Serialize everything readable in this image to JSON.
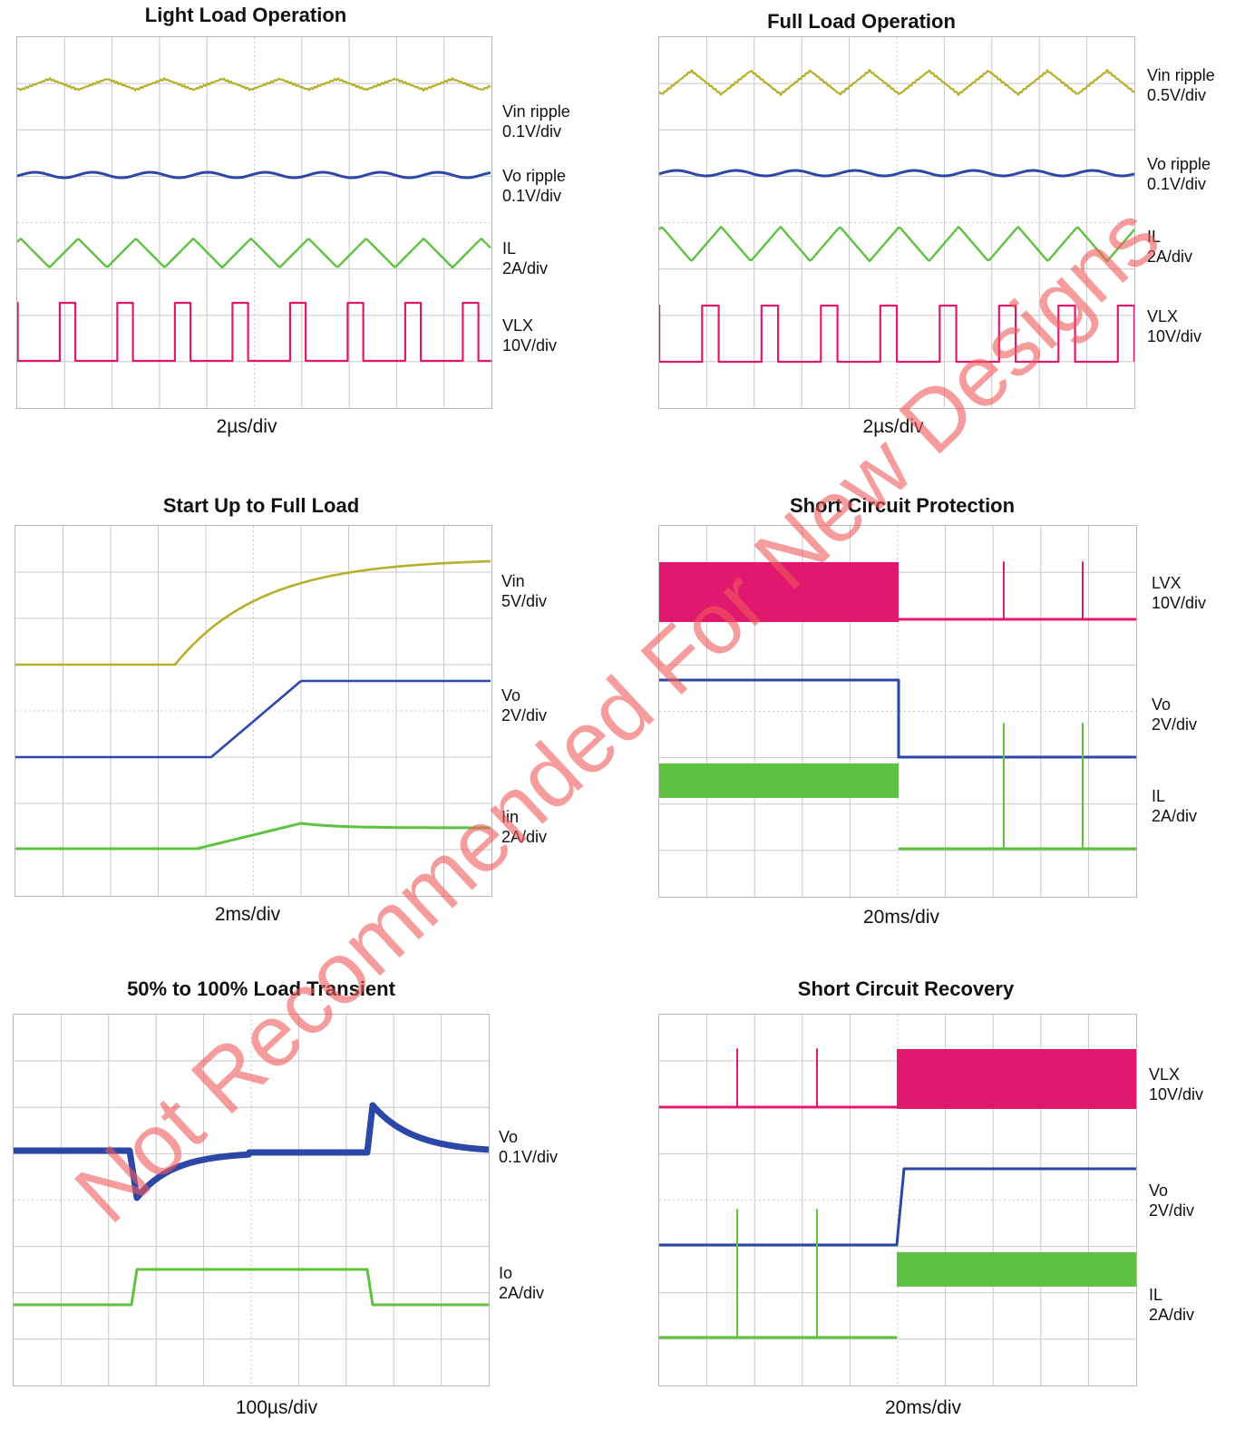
{
  "watermark": "Not Recommended For New Designs",
  "colors": {
    "vin": "#b5b02a",
    "vo": "#2b47a8",
    "il": "#5cc23f",
    "vlx": "#e0186e",
    "grid": "#c8c8c8"
  },
  "chart_data": [
    {
      "type": "line",
      "title": "Light Load Operation",
      "time_division": "2µs/div",
      "channels": [
        {
          "name": "Vin ripple",
          "scale": "0.1V/div",
          "waveform": "ripple"
        },
        {
          "name": "Vo ripple",
          "scale": "0.1V/div",
          "waveform": "ripple"
        },
        {
          "name": "IL",
          "scale": "2A/div",
          "waveform": "triangle"
        },
        {
          "name": "VLX",
          "scale": "10V/div",
          "waveform": "pulse"
        }
      ]
    },
    {
      "type": "line",
      "title": "Full Load Operation",
      "time_division": "2µs/div",
      "channels": [
        {
          "name": "Vin ripple",
          "scale": "0.5V/div",
          "waveform": "ripple"
        },
        {
          "name": "Vo ripple",
          "scale": "0.1V/div",
          "waveform": "ripple"
        },
        {
          "name": "IL",
          "scale": "2A/div",
          "waveform": "triangle"
        },
        {
          "name": "VLX",
          "scale": "10V/div",
          "waveform": "pulse"
        }
      ]
    },
    {
      "type": "line",
      "title": "Start Up to Full Load",
      "time_division": "2ms/div",
      "channels": [
        {
          "name": "Vin",
          "scale": "5V/div",
          "waveform": "rise"
        },
        {
          "name": "Vo",
          "scale": "2V/div",
          "waveform": "ramp"
        },
        {
          "name": "Iin",
          "scale": "2A/div",
          "waveform": "bump"
        }
      ]
    },
    {
      "type": "line",
      "title": "Short Circuit Protection",
      "time_division": "20ms/div",
      "channels": [
        {
          "name": "LVX",
          "scale": "10V/div",
          "waveform": "switching-then-hiccup"
        },
        {
          "name": "Vo",
          "scale": "2V/div",
          "waveform": "step-down"
        },
        {
          "name": "IL",
          "scale": "2A/div",
          "waveform": "switching-then-hiccup"
        }
      ]
    },
    {
      "type": "line",
      "title": "50% to 100% Load Transient",
      "time_division": "100µs/div",
      "channels": [
        {
          "name": "Vo",
          "scale": "0.1V/div",
          "waveform": "transient"
        },
        {
          "name": "Io",
          "scale": "2A/div",
          "waveform": "load-step"
        }
      ]
    },
    {
      "type": "line",
      "title": "Short Circuit Recovery",
      "time_division": "20ms/div",
      "channels": [
        {
          "name": "VLX",
          "scale": "10V/div",
          "waveform": "hiccup-then-switching"
        },
        {
          "name": "Vo",
          "scale": "2V/div",
          "waveform": "step-up"
        },
        {
          "name": "IL",
          "scale": "2A/div",
          "waveform": "hiccup-then-switching"
        }
      ]
    }
  ]
}
